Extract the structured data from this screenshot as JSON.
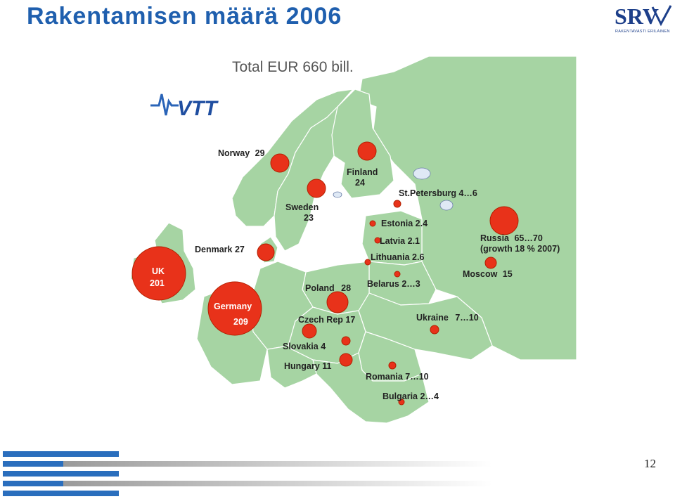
{
  "slide": {
    "title": "Rakentamisen määrä 2006",
    "page_number": "12"
  },
  "logo": {
    "name": "SRV",
    "tagline": "RAKENTAVASTI ERILAINEN"
  },
  "map": {
    "total_label": "Total EUR 660 bill.",
    "source_logo": "VTT",
    "colors": {
      "land": "#a6d4a3",
      "land_dark": "#8fc28c",
      "border": "#ffffff",
      "water": "#ffffff",
      "marker": "#e8321a",
      "marker_stroke": "#b22000"
    },
    "countries": [
      {
        "id": "norway",
        "label": "Norway",
        "value": "29"
      },
      {
        "id": "finland",
        "label": "Finland",
        "value": "24"
      },
      {
        "id": "sweden",
        "label": "Sweden",
        "value": "23"
      },
      {
        "id": "st-petersburg",
        "label": "St.Petersburg",
        "value": "4…6"
      },
      {
        "id": "estonia",
        "label": "Estonia",
        "value": "2.4"
      },
      {
        "id": "latvia",
        "label": "Latvia",
        "value": "2.1"
      },
      {
        "id": "lithuania",
        "label": "Lithuania",
        "value": "2.6"
      },
      {
        "id": "russia",
        "label": "Russia",
        "value": "65…70",
        "note": "(growth 18 % 2007)"
      },
      {
        "id": "moscow",
        "label": "Moscow",
        "value": "15"
      },
      {
        "id": "denmark",
        "label": "Denmark",
        "value": "27"
      },
      {
        "id": "uk",
        "label": "UK",
        "value": "201"
      },
      {
        "id": "germany",
        "label": "Germany",
        "value": "209"
      },
      {
        "id": "poland",
        "label": "Poland",
        "value": "28"
      },
      {
        "id": "belarus",
        "label": "Belarus",
        "value": "2…3"
      },
      {
        "id": "czech",
        "label": "Czech Rep",
        "value": "17"
      },
      {
        "id": "ukraine",
        "label": "Ukraine",
        "value": "7…10"
      },
      {
        "id": "slovakia",
        "label": "Slovakia",
        "value": "4"
      },
      {
        "id": "hungary",
        "label": "Hungary",
        "value": "11"
      },
      {
        "id": "romania",
        "label": "Romania",
        "value": "7…10"
      },
      {
        "id": "bulgaria",
        "label": "Bulgaria",
        "value": "2…4"
      }
    ]
  }
}
